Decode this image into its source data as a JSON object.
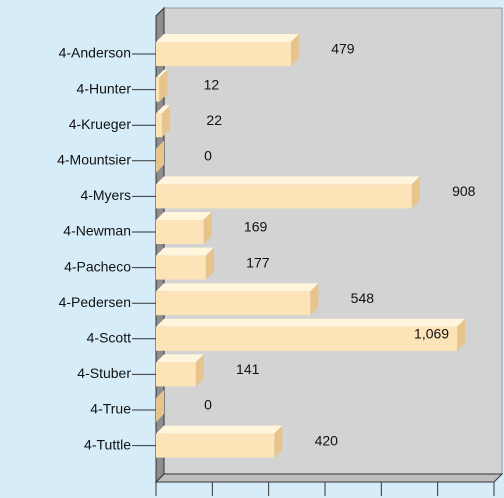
{
  "chart_data": {
    "type": "barh",
    "categories": [
      "4-Anderson",
      "4-Hunter",
      "4-Krueger",
      "4-Mountsier",
      "4-Myers",
      "4-Newman",
      "4-Pacheco",
      "4-Pedersen",
      "4-Scott",
      "4-Stuber",
      "4-True",
      "4-Tuttle"
    ],
    "values": [
      479,
      12,
      22,
      0,
      908,
      169,
      177,
      548,
      1069,
      141,
      0,
      420
    ],
    "value_labels": [
      "479",
      "12",
      "22",
      "0",
      "908",
      "169",
      "177",
      "548",
      "1,069",
      "141",
      "0",
      "420"
    ],
    "color": "#fde3b8",
    "xlim": [
      0,
      1200
    ],
    "xticks": [
      0,
      200,
      400,
      600,
      800,
      1000,
      1200
    ]
  }
}
